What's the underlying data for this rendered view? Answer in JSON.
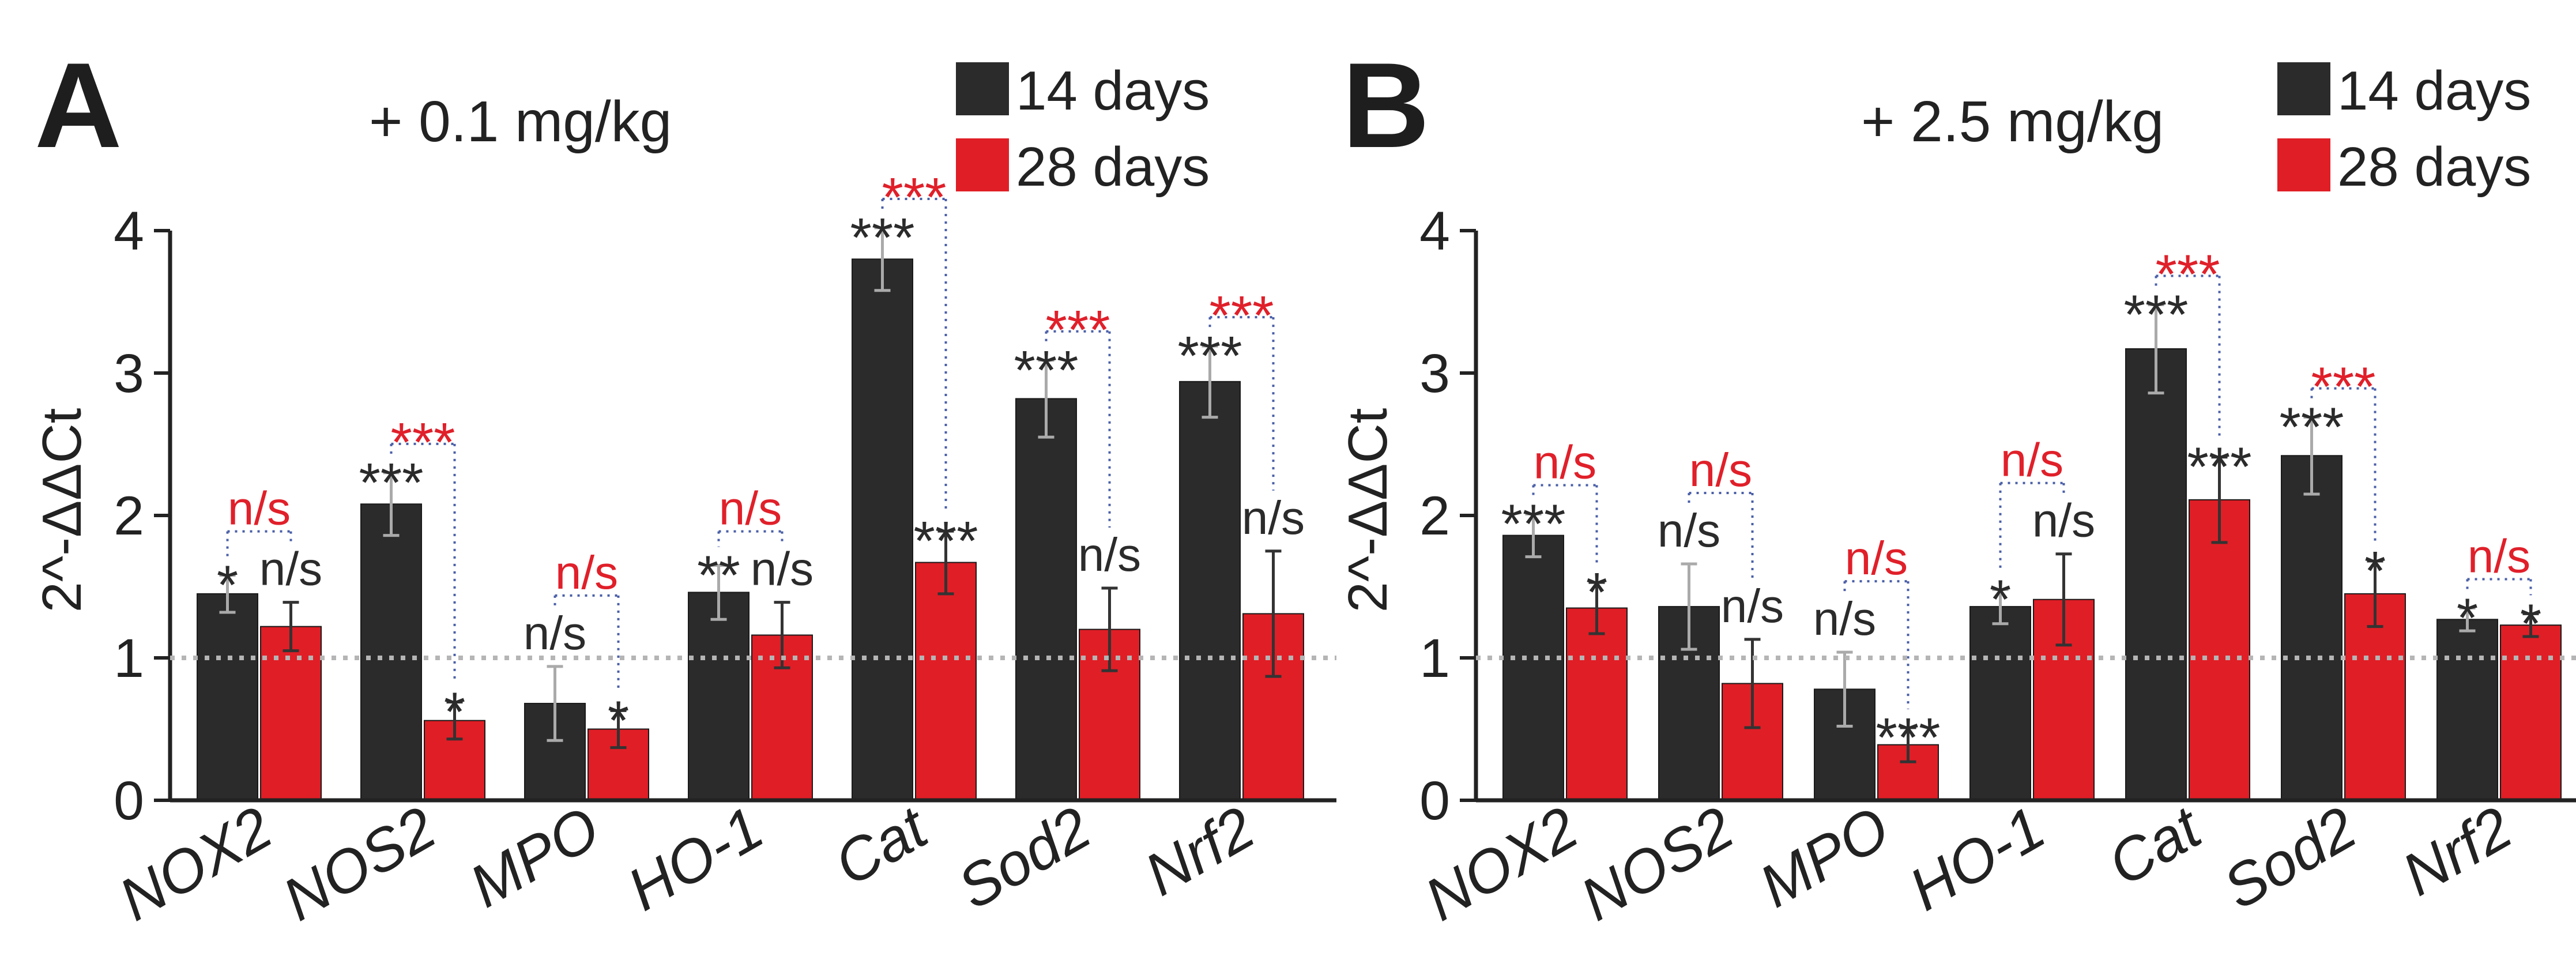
{
  "colors": {
    "day14": "#2b2b2b",
    "day28": "#e01e26",
    "errorbar_dark": "#aaaaaa",
    "errorbar_red": "#333333",
    "baseline": "#b5b5b5",
    "bracket": "#4a5fa8",
    "sig_red": "#e0202a",
    "sig_black": "#2b2b2b"
  },
  "legend": {
    "day14": "14 days",
    "day28": "28 days"
  },
  "chart_data": [
    {
      "type": "bar",
      "panel": "A",
      "title": "+ 0.1 mg/kg",
      "xlabel": "",
      "ylabel": "2^-ΔΔCt",
      "ylim": [
        0,
        4
      ],
      "yticks": [
        "0",
        "1",
        "2",
        "3",
        "4"
      ],
      "baseline": 1,
      "categories": [
        "NOX2",
        "NOS2",
        "MPO",
        "HO-1",
        "Cat",
        "Sod2",
        "Nrf2"
      ],
      "series": [
        {
          "name": "14 days",
          "values": [
            1.45,
            2.08,
            0.68,
            1.46,
            3.8,
            2.82,
            2.94
          ],
          "errors": [
            0.13,
            0.22,
            0.26,
            0.19,
            0.22,
            0.27,
            0.25
          ],
          "labels": [
            "*",
            "***",
            "n/s",
            "**",
            "***",
            "***",
            "***"
          ]
        },
        {
          "name": "28 days",
          "values": [
            1.22,
            0.56,
            0.5,
            1.16,
            1.67,
            1.2,
            1.31
          ],
          "errors": [
            0.17,
            0.13,
            0.13,
            0.23,
            0.22,
            0.29,
            0.44
          ],
          "labels": [
            "n/s",
            "*",
            "*",
            "n/s",
            "***",
            "n/s",
            "n/s"
          ]
        }
      ],
      "comparisons": [
        "n/s",
        "***",
        "n/s",
        "n/s",
        "***",
        "***",
        "***"
      ]
    },
    {
      "type": "bar",
      "panel": "B",
      "title": "+ 2.5 mg/kg",
      "xlabel": "",
      "ylabel": "2^-ΔΔCt",
      "ylim": [
        0,
        4
      ],
      "yticks": [
        "0",
        "1",
        "2",
        "3",
        "4"
      ],
      "baseline": 1,
      "categories": [
        "NOX2",
        "NOS2",
        "MPO",
        "HO-1",
        "Cat",
        "Sod2",
        "Nrf2"
      ],
      "series": [
        {
          "name": "14 days",
          "values": [
            1.86,
            1.36,
            0.78,
            1.36,
            3.17,
            2.42,
            1.27
          ],
          "errors": [
            0.15,
            0.3,
            0.26,
            0.12,
            0.31,
            0.27,
            0.08
          ],
          "labels": [
            "***",
            "n/s",
            "n/s",
            "*",
            "***",
            "***",
            "*"
          ]
        },
        {
          "name": "28 days",
          "values": [
            1.35,
            0.82,
            0.39,
            1.41,
            2.11,
            1.45,
            1.23
          ],
          "errors": [
            0.18,
            0.31,
            0.12,
            0.32,
            0.3,
            0.23,
            0.08
          ],
          "labels": [
            "*",
            "n/s",
            "***",
            "n/s",
            "***",
            "*",
            "*"
          ]
        }
      ],
      "comparisons": [
        "n/s",
        "n/s",
        "n/s",
        "n/s",
        "***",
        "***",
        "n/s"
      ]
    }
  ]
}
